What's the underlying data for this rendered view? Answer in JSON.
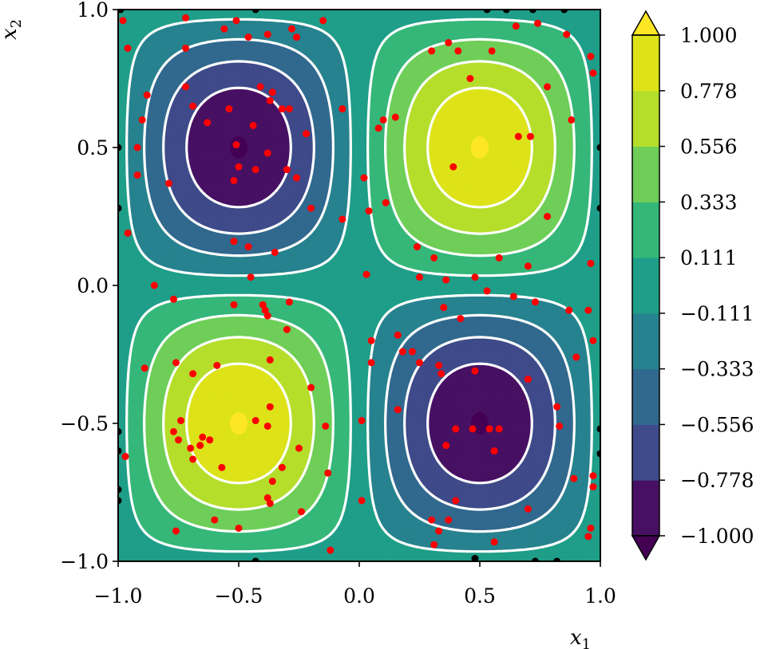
{
  "chart_data": {
    "type": "contour",
    "function": "sin(pi*x1) * sin(pi*x2)",
    "xlabel": "x_1",
    "ylabel": "x_2",
    "xlim": [
      -1.0,
      1.0
    ],
    "ylim": [
      -1.0,
      1.0
    ],
    "xticks": [
      "−1.0",
      "−0.5",
      "0.0",
      "0.5",
      "1.0"
    ],
    "xtick_values": [
      -1.0,
      -0.5,
      0.0,
      0.5,
      1.0
    ],
    "yticks": [
      "−1.0",
      "−0.5",
      "0.0",
      "0.5",
      "1.0"
    ],
    "ytick_values": [
      -1.0,
      -0.5,
      0.0,
      0.5,
      1.0
    ],
    "colorbar": {
      "levels": [
        -1.0,
        -0.778,
        -0.556,
        -0.333,
        -0.111,
        0.111,
        0.333,
        0.556,
        0.778,
        1.0
      ],
      "tick_labels": [
        "−1.000",
        "−0.778",
        "−0.556",
        "−0.333",
        "−0.111",
        "0.111",
        "0.333",
        "0.556",
        "0.778",
        "1.000"
      ],
      "colormap": "viridis",
      "extend": "both",
      "under_color": "#440154",
      "over_color": "#fde725"
    },
    "contour_lines": {
      "color": "#ffffff",
      "positive_style": "solid",
      "negative_style": "dashed",
      "levels": [
        -1.0,
        -0.778,
        -0.556,
        -0.333,
        -0.111,
        0.111,
        0.333,
        0.556,
        0.778,
        1.0
      ]
    },
    "red_points": [
      [
        -0.98,
        0.96
      ],
      [
        -0.96,
        0.86
      ],
      [
        -0.72,
        0.97
      ],
      [
        -0.72,
        0.86
      ],
      [
        -0.56,
        0.93
      ],
      [
        -0.51,
        0.96
      ],
      [
        -0.46,
        0.9
      ],
      [
        -0.38,
        0.91
      ],
      [
        -0.28,
        0.93
      ],
      [
        -0.26,
        0.9
      ],
      [
        -0.72,
        0.72
      ],
      [
        -0.69,
        0.65
      ],
      [
        -0.88,
        0.69
      ],
      [
        -0.9,
        0.6
      ],
      [
        -0.63,
        0.59
      ],
      [
        -0.54,
        0.64
      ],
      [
        -0.44,
        0.58
      ],
      [
        -0.41,
        0.72
      ],
      [
        -0.37,
        0.67
      ],
      [
        -0.36,
        0.7
      ],
      [
        -0.32,
        0.64
      ],
      [
        -0.38,
        0.48
      ],
      [
        -0.51,
        0.51
      ],
      [
        -0.5,
        0.43
      ],
      [
        -0.43,
        0.42
      ],
      [
        -0.52,
        0.38
      ],
      [
        -0.3,
        0.42
      ],
      [
        -0.26,
        0.39
      ],
      [
        -0.22,
        0.55
      ],
      [
        -0.29,
        0.64
      ],
      [
        -0.92,
        0.5
      ],
      [
        -0.92,
        0.4
      ],
      [
        -0.79,
        0.37
      ],
      [
        -0.96,
        0.19
      ],
      [
        -0.85,
        0.0
      ],
      [
        -0.52,
        0.16
      ],
      [
        -0.46,
        0.14
      ],
      [
        -0.35,
        0.12
      ],
      [
        -0.2,
        0.28
      ],
      [
        -0.07,
        0.24
      ],
      [
        -0.45,
        0.03
      ],
      [
        -0.07,
        0.64
      ],
      [
        -0.77,
        -0.05
      ],
      [
        -0.52,
        -0.07
      ],
      [
        -0.4,
        -0.07
      ],
      [
        -0.38,
        -0.11
      ],
      [
        -0.39,
        -0.09
      ],
      [
        -0.3,
        -0.16
      ],
      [
        -0.29,
        -0.06
      ],
      [
        -0.76,
        -0.28
      ],
      [
        -0.69,
        -0.32
      ],
      [
        -0.59,
        -0.29
      ],
      [
        -0.89,
        -0.3
      ],
      [
        -0.37,
        -0.27
      ],
      [
        -0.43,
        -0.49
      ],
      [
        -0.37,
        -0.44
      ],
      [
        -0.38,
        -0.51
      ],
      [
        -0.2,
        -0.37
      ],
      [
        -0.14,
        -0.51
      ],
      [
        -0.74,
        -0.49
      ],
      [
        -0.77,
        -0.53
      ],
      [
        -0.65,
        -0.55
      ],
      [
        -0.62,
        -0.56
      ],
      [
        -0.66,
        -0.58
      ],
      [
        -0.7,
        -0.59
      ],
      [
        -0.75,
        -0.56
      ],
      [
        -0.69,
        -0.63
      ],
      [
        -0.57,
        -0.66
      ],
      [
        -0.25,
        -0.59
      ],
      [
        -0.32,
        -0.66
      ],
      [
        -0.36,
        -0.71
      ],
      [
        -0.37,
        -0.79
      ],
      [
        -0.38,
        -0.77
      ],
      [
        -0.24,
        -0.82
      ],
      [
        -0.6,
        -0.85
      ],
      [
        -0.5,
        -0.88
      ],
      [
        -0.76,
        -0.89
      ],
      [
        -0.12,
        -0.96
      ],
      [
        -0.97,
        -0.62
      ],
      [
        -0.13,
        -0.68
      ],
      [
        0.01,
        -0.49
      ],
      [
        0.01,
        -0.78
      ],
      [
        -0.15,
        0.96
      ],
      [
        0.3,
        0.85
      ],
      [
        0.37,
        0.88
      ],
      [
        0.41,
        0.85
      ],
      [
        0.55,
        0.85
      ],
      [
        0.65,
        0.94
      ],
      [
        0.74,
        0.95
      ],
      [
        0.86,
        0.91
      ],
      [
        0.96,
        0.83
      ],
      [
        0.97,
        0.77
      ],
      [
        0.78,
        0.72
      ],
      [
        0.46,
        0.75
      ],
      [
        0.66,
        0.54
      ],
      [
        0.71,
        0.54
      ],
      [
        0.88,
        0.6
      ],
      [
        0.39,
        0.43
      ],
      [
        0.08,
        0.57
      ],
      [
        0.1,
        0.6
      ],
      [
        0.15,
        0.61
      ],
      [
        0.02,
        0.39
      ],
      [
        0.04,
        0.27
      ],
      [
        0.11,
        0.3
      ],
      [
        0.78,
        0.25
      ],
      [
        0.24,
        0.14
      ],
      [
        0.31,
        0.1
      ],
      [
        0.58,
        0.1
      ],
      [
        0.7,
        0.07
      ],
      [
        0.48,
        0.03
      ],
      [
        0.36,
        0.02
      ],
      [
        0.25,
        0.03
      ],
      [
        0.03,
        0.04
      ],
      [
        0.35,
        -0.08
      ],
      [
        0.42,
        -0.12
      ],
      [
        0.53,
        -0.02
      ],
      [
        0.64,
        -0.04
      ],
      [
        0.73,
        -0.06
      ],
      [
        0.87,
        -0.09
      ],
      [
        0.95,
        -0.09
      ],
      [
        0.96,
        0.08
      ],
      [
        0.97,
        -0.2
      ],
      [
        0.9,
        -0.26
      ],
      [
        0.16,
        -0.18
      ],
      [
        0.05,
        -0.2
      ],
      [
        0.05,
        -0.28
      ],
      [
        0.18,
        -0.24
      ],
      [
        0.22,
        -0.24
      ],
      [
        0.25,
        -0.28
      ],
      [
        0.33,
        -0.29
      ],
      [
        0.34,
        -0.32
      ],
      [
        0.48,
        -0.31
      ],
      [
        0.7,
        -0.34
      ],
      [
        0.16,
        -0.45
      ],
      [
        0.4,
        -0.52
      ],
      [
        0.47,
        -0.52
      ],
      [
        0.54,
        -0.52
      ],
      [
        0.58,
        -0.52
      ],
      [
        0.82,
        -0.44
      ],
      [
        0.83,
        -0.51
      ],
      [
        0.36,
        -0.58
      ],
      [
        0.56,
        -0.6
      ],
      [
        0.4,
        -0.78
      ],
      [
        0.7,
        -0.81
      ],
      [
        0.3,
        -0.85
      ],
      [
        0.33,
        -0.89
      ],
      [
        0.37,
        -0.85
      ],
      [
        0.31,
        -0.94
      ],
      [
        0.56,
        -0.93
      ],
      [
        0.89,
        -0.7
      ],
      [
        0.97,
        -0.69
      ],
      [
        0.97,
        -0.73
      ],
      [
        0.95,
        -0.91
      ],
      [
        0.96,
        -0.88
      ]
    ],
    "black_points": [
      [
        -0.99,
        1.0
      ],
      [
        -0.43,
        1.0
      ],
      [
        0.53,
        1.0
      ],
      [
        0.61,
        1.0
      ],
      [
        0.72,
        1.0
      ],
      [
        0.85,
        1.0
      ],
      [
        1.0,
        0.5
      ],
      [
        1.0,
        0.28
      ],
      [
        -1.0,
        0.28
      ],
      [
        -1.0,
        0.5
      ],
      [
        1.0,
        -0.52
      ],
      [
        1.0,
        -0.61
      ],
      [
        -1.0,
        -0.53
      ],
      [
        -1.0,
        -0.6
      ],
      [
        -1.0,
        -0.74
      ],
      [
        -1.0,
        -0.78
      ],
      [
        0.48,
        -0.99
      ],
      [
        0.73,
        -1.0
      ],
      [
        0.82,
        -1.0
      ],
      [
        -0.43,
        -1.0
      ]
    ]
  }
}
